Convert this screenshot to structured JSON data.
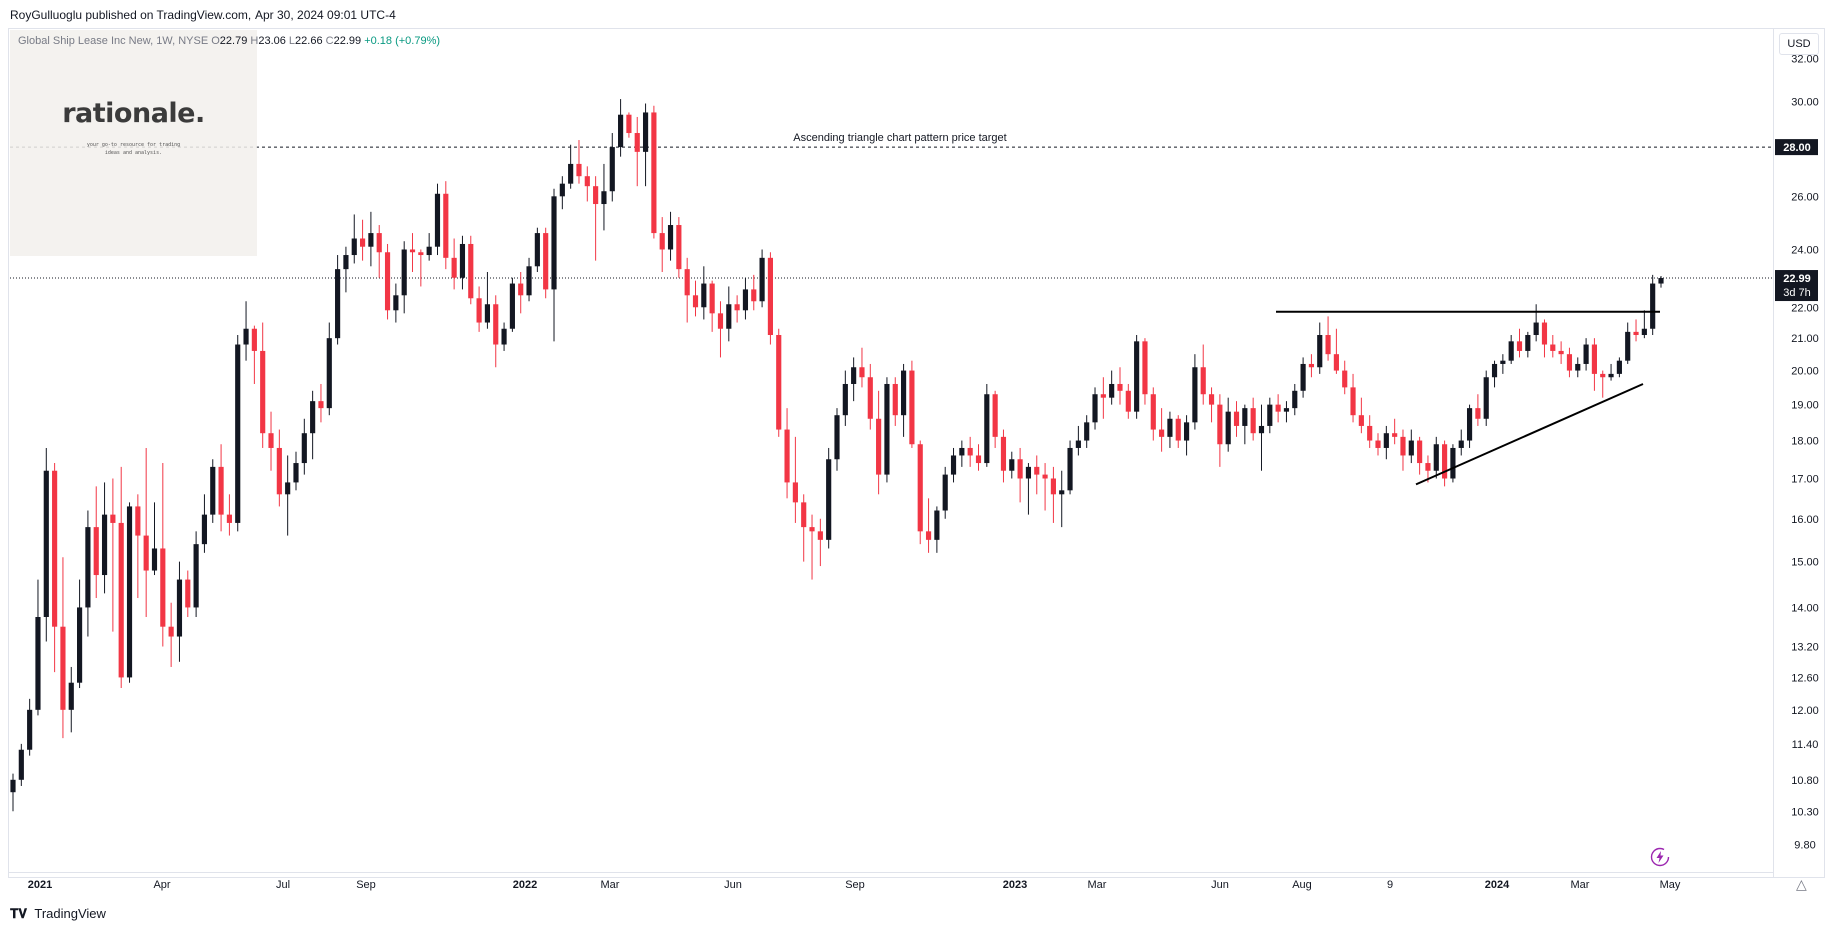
{
  "header": {
    "publisher": "RoyGulluoglu published on TradingView.com,",
    "date": "Apr 30, 2024 09:01 UTC-4"
  },
  "legend": {
    "title": "Global Ship Lease Inc New, 1W, NYSE",
    "open_label": "O",
    "open": "22.79",
    "high_label": "H",
    "high": "23.06",
    "low_label": "L",
    "low": "22.66",
    "close_label": "C",
    "close": "22.99",
    "change": "+0.18 (+0.79%)"
  },
  "watermark": {
    "word": "rationale.",
    "tagline_1": "your go-to resource for trading",
    "tagline_2": "ideas and analysis."
  },
  "currency": "USD",
  "colors": {
    "up": "#131722",
    "down": "#f23645",
    "accent": "#2962ff",
    "grid": "#e0e3eb",
    "axis_text": "#131722"
  },
  "chart_data": {
    "type": "candlestick",
    "scale": "log",
    "ylim": [
      9.4,
      33.5
    ],
    "y_ticks": [
      "32.00",
      "30.00",
      "26.00",
      "24.00",
      "22.00",
      "21.00",
      "20.00",
      "19.00",
      "18.00",
      "17.00",
      "16.00",
      "15.00",
      "14.00",
      "13.20",
      "12.60",
      "12.00",
      "11.40",
      "10.80",
      "10.30",
      "9.80"
    ],
    "x_ticks": [
      "2021",
      "Apr",
      "Jul",
      "Sep",
      "2022",
      "Mar",
      "Jun",
      "Sep",
      "2023",
      "Mar",
      "Jun",
      "Aug",
      "9",
      "2024",
      "Mar",
      "May"
    ],
    "target_line": {
      "value": 28.0,
      "label": "28.00",
      "annotation": "Ascending triangle chart pattern price target"
    },
    "last_price": {
      "value": 22.99,
      "label": "22.99",
      "countdown": "3d 7h"
    },
    "candles": [
      [
        10.6,
        10.9,
        10.3,
        10.8
      ],
      [
        10.8,
        11.4,
        10.7,
        11.3
      ],
      [
        11.3,
        12.2,
        11.2,
        12.0
      ],
      [
        12.0,
        14.6,
        11.9,
        13.8
      ],
      [
        13.8,
        17.8,
        13.3,
        17.2
      ],
      [
        17.2,
        17.4,
        12.7,
        13.6
      ],
      [
        13.6,
        15.1,
        11.5,
        12.0
      ],
      [
        12.0,
        12.8,
        11.6,
        12.5
      ],
      [
        12.5,
        14.6,
        12.4,
        14.0
      ],
      [
        14.0,
        16.2,
        13.4,
        15.8
      ],
      [
        15.8,
        16.8,
        14.2,
        14.7
      ],
      [
        14.7,
        16.9,
        14.3,
        16.1
      ],
      [
        16.1,
        17.0,
        13.5,
        15.9
      ],
      [
        15.9,
        17.3,
        12.4,
        12.6
      ],
      [
        12.6,
        16.4,
        12.5,
        16.3
      ],
      [
        16.3,
        16.6,
        14.2,
        15.6
      ],
      [
        15.6,
        17.8,
        13.8,
        14.8
      ],
      [
        14.8,
        16.4,
        14.7,
        15.3
      ],
      [
        15.3,
        17.4,
        13.2,
        13.6
      ],
      [
        13.6,
        14.1,
        12.8,
        13.4
      ],
      [
        13.4,
        15.0,
        12.9,
        14.6
      ],
      [
        14.6,
        14.8,
        13.8,
        14.0
      ],
      [
        14.0,
        15.7,
        13.8,
        15.4
      ],
      [
        15.4,
        16.6,
        15.2,
        16.1
      ],
      [
        16.1,
        17.5,
        15.9,
        17.3
      ],
      [
        17.3,
        17.9,
        15.7,
        16.1
      ],
      [
        16.1,
        16.6,
        15.6,
        15.9
      ],
      [
        15.9,
        21.1,
        15.7,
        20.8
      ],
      [
        20.8,
        22.2,
        20.3,
        21.3
      ],
      [
        21.3,
        21.4,
        19.6,
        20.6
      ],
      [
        20.6,
        21.5,
        17.8,
        18.2
      ],
      [
        18.2,
        18.8,
        17.2,
        17.8
      ],
      [
        17.8,
        18.3,
        16.3,
        16.6
      ],
      [
        16.6,
        17.6,
        15.6,
        16.9
      ],
      [
        16.9,
        17.7,
        16.7,
        17.4
      ],
      [
        17.4,
        18.6,
        17.1,
        18.2
      ],
      [
        18.2,
        19.4,
        17.5,
        19.1
      ],
      [
        19.1,
        19.6,
        18.5,
        18.9
      ],
      [
        18.9,
        21.5,
        18.7,
        21.0
      ],
      [
        21.0,
        23.8,
        20.8,
        23.3
      ],
      [
        23.3,
        24.1,
        22.5,
        23.8
      ],
      [
        23.8,
        25.3,
        23.5,
        24.4
      ],
      [
        24.4,
        25.1,
        23.6,
        24.1
      ],
      [
        24.1,
        25.4,
        23.4,
        24.6
      ],
      [
        24.6,
        24.9,
        23.0,
        23.9
      ],
      [
        23.9,
        24.2,
        21.6,
        21.9
      ],
      [
        21.9,
        22.8,
        21.5,
        22.4
      ],
      [
        22.4,
        24.3,
        21.8,
        24.0
      ],
      [
        24.0,
        24.6,
        23.2,
        23.9
      ],
      [
        23.9,
        24.0,
        22.7,
        23.8
      ],
      [
        23.8,
        24.6,
        23.6,
        24.1
      ],
      [
        24.1,
        26.5,
        23.8,
        26.1
      ],
      [
        26.1,
        26.6,
        23.3,
        23.7
      ],
      [
        23.7,
        24.4,
        22.6,
        23.0
      ],
      [
        23.0,
        24.5,
        22.6,
        24.2
      ],
      [
        24.2,
        24.5,
        22.1,
        22.3
      ],
      [
        22.3,
        22.7,
        21.2,
        21.5
      ],
      [
        21.5,
        23.2,
        21.3,
        22.1
      ],
      [
        22.1,
        22.4,
        20.1,
        20.8
      ],
      [
        20.8,
        21.5,
        20.6,
        21.3
      ],
      [
        21.3,
        23.0,
        21.2,
        22.8
      ],
      [
        22.8,
        23.2,
        21.8,
        22.4
      ],
      [
        22.4,
        23.7,
        22.2,
        23.4
      ],
      [
        23.4,
        24.8,
        23.2,
        24.6
      ],
      [
        24.6,
        24.8,
        22.3,
        22.6
      ],
      [
        22.6,
        26.3,
        20.9,
        26.0
      ],
      [
        26.0,
        26.8,
        25.5,
        26.5
      ],
      [
        26.5,
        28.1,
        26.3,
        27.3
      ],
      [
        27.3,
        28.3,
        26.5,
        26.8
      ],
      [
        26.8,
        27.2,
        25.8,
        26.4
      ],
      [
        26.4,
        26.8,
        23.6,
        25.7
      ],
      [
        25.7,
        27.3,
        24.7,
        26.2
      ],
      [
        26.2,
        28.6,
        25.8,
        28.0
      ],
      [
        28.0,
        30.1,
        27.6,
        29.4
      ],
      [
        29.4,
        29.5,
        28.4,
        28.6
      ],
      [
        28.6,
        29.3,
        26.4,
        27.8
      ],
      [
        27.8,
        29.9,
        26.4,
        29.5
      ],
      [
        29.5,
        29.8,
        24.4,
        24.6
      ],
      [
        24.6,
        25.2,
        23.2,
        24.0
      ],
      [
        24.0,
        25.4,
        23.6,
        24.9
      ],
      [
        24.9,
        25.2,
        23.0,
        23.3
      ],
      [
        23.3,
        23.7,
        21.5,
        22.4
      ],
      [
        22.4,
        22.9,
        21.7,
        22.0
      ],
      [
        22.0,
        23.4,
        21.6,
        22.8
      ],
      [
        22.8,
        22.9,
        21.2,
        21.8
      ],
      [
        21.8,
        22.2,
        20.4,
        21.3
      ],
      [
        21.3,
        22.7,
        20.9,
        22.1
      ],
      [
        22.1,
        22.4,
        21.5,
        21.9
      ],
      [
        21.9,
        23.0,
        21.6,
        22.6
      ],
      [
        22.6,
        23.1,
        21.9,
        22.2
      ],
      [
        22.2,
        24.0,
        22.0,
        23.7
      ],
      [
        23.7,
        23.9,
        20.8,
        21.1
      ],
      [
        21.1,
        21.3,
        18.1,
        18.3
      ],
      [
        18.3,
        18.9,
        16.5,
        16.9
      ],
      [
        16.9,
        18.1,
        15.9,
        16.4
      ],
      [
        16.4,
        16.6,
        15.0,
        15.8
      ],
      [
        15.8,
        16.1,
        14.6,
        15.7
      ],
      [
        15.7,
        16.0,
        14.9,
        15.5
      ],
      [
        15.5,
        17.8,
        15.3,
        17.5
      ],
      [
        17.5,
        18.9,
        17.2,
        18.7
      ],
      [
        18.7,
        20.0,
        18.4,
        19.6
      ],
      [
        19.6,
        20.4,
        19.1,
        20.1
      ],
      [
        20.1,
        20.7,
        19.5,
        19.8
      ],
      [
        19.8,
        20.2,
        18.3,
        18.6
      ],
      [
        18.6,
        19.4,
        16.6,
        17.1
      ],
      [
        17.1,
        19.8,
        16.9,
        19.6
      ],
      [
        19.6,
        19.8,
        18.4,
        18.7
      ],
      [
        18.7,
        20.2,
        18.1,
        20.0
      ],
      [
        20.0,
        20.3,
        17.8,
        17.9
      ],
      [
        17.9,
        18.0,
        15.4,
        15.7
      ],
      [
        15.7,
        16.5,
        15.2,
        15.5
      ],
      [
        15.5,
        16.3,
        15.2,
        16.2
      ],
      [
        16.2,
        17.3,
        16.0,
        17.1
      ],
      [
        17.1,
        17.8,
        16.9,
        17.6
      ],
      [
        17.6,
        18.0,
        17.3,
        17.8
      ],
      [
        17.8,
        18.1,
        17.3,
        17.6
      ],
      [
        17.6,
        17.9,
        17.2,
        17.4
      ],
      [
        17.4,
        19.6,
        17.3,
        19.3
      ],
      [
        19.3,
        19.4,
        17.8,
        18.1
      ],
      [
        18.1,
        18.3,
        16.9,
        17.2
      ],
      [
        17.2,
        17.7,
        17.0,
        17.5
      ],
      [
        17.5,
        17.8,
        16.4,
        17.0
      ],
      [
        17.0,
        17.4,
        16.1,
        17.3
      ],
      [
        17.3,
        17.6,
        16.6,
        17.1
      ],
      [
        17.1,
        17.4,
        16.2,
        17.0
      ],
      [
        17.0,
        17.3,
        15.9,
        16.6
      ],
      [
        16.6,
        17.2,
        15.8,
        16.7
      ],
      [
        16.7,
        18.0,
        16.6,
        17.8
      ],
      [
        17.8,
        18.4,
        17.6,
        18.0
      ],
      [
        18.0,
        18.7,
        17.8,
        18.5
      ],
      [
        18.5,
        19.5,
        18.3,
        19.3
      ],
      [
        19.3,
        19.8,
        18.6,
        19.2
      ],
      [
        19.2,
        20.0,
        19.0,
        19.6
      ],
      [
        19.6,
        20.1,
        19.0,
        19.4
      ],
      [
        19.4,
        19.6,
        18.6,
        18.8
      ],
      [
        18.8,
        21.1,
        18.6,
        20.9
      ],
      [
        20.9,
        21.0,
        19.0,
        19.3
      ],
      [
        19.3,
        19.5,
        18.0,
        18.3
      ],
      [
        18.3,
        18.9,
        17.7,
        18.1
      ],
      [
        18.1,
        18.8,
        17.8,
        18.6
      ],
      [
        18.6,
        18.7,
        17.8,
        18.0
      ],
      [
        18.0,
        18.7,
        17.6,
        18.5
      ],
      [
        18.5,
        20.5,
        18.3,
        20.1
      ],
      [
        20.1,
        20.8,
        19.0,
        19.3
      ],
      [
        19.3,
        19.5,
        18.5,
        19.0
      ],
      [
        19.0,
        19.3,
        17.3,
        17.9
      ],
      [
        17.9,
        19.2,
        17.7,
        18.8
      ],
      [
        18.8,
        19.1,
        18.1,
        18.4
      ],
      [
        18.4,
        19.0,
        17.9,
        18.9
      ],
      [
        18.9,
        19.2,
        18.0,
        18.2
      ],
      [
        18.2,
        19.0,
        17.2,
        18.4
      ],
      [
        18.4,
        19.2,
        18.2,
        19.0
      ],
      [
        19.0,
        19.3,
        18.5,
        18.8
      ],
      [
        18.8,
        19.1,
        18.5,
        18.9
      ],
      [
        18.9,
        19.6,
        18.7,
        19.4
      ],
      [
        19.4,
        20.4,
        19.2,
        20.2
      ],
      [
        20.2,
        20.5,
        19.8,
        20.1
      ],
      [
        20.1,
        21.5,
        19.9,
        21.1
      ],
      [
        21.1,
        21.7,
        20.3,
        20.5
      ],
      [
        20.5,
        21.3,
        19.9,
        20.0
      ],
      [
        20.0,
        20.3,
        19.3,
        19.5
      ],
      [
        19.5,
        19.9,
        18.5,
        18.7
      ],
      [
        18.7,
        19.2,
        18.2,
        18.4
      ],
      [
        18.4,
        18.7,
        17.8,
        18.0
      ],
      [
        18.0,
        18.2,
        17.6,
        17.8
      ],
      [
        17.8,
        18.4,
        17.5,
        18.2
      ],
      [
        18.2,
        18.6,
        17.9,
        18.1
      ],
      [
        18.1,
        18.3,
        17.2,
        17.6
      ],
      [
        17.6,
        18.3,
        17.4,
        18.0
      ],
      [
        18.0,
        18.1,
        17.1,
        17.4
      ],
      [
        17.4,
        17.6,
        16.9,
        17.2
      ],
      [
        17.2,
        18.1,
        17.0,
        17.9
      ],
      [
        17.9,
        18.0,
        16.8,
        17.0
      ],
      [
        17.0,
        17.9,
        16.9,
        17.8
      ],
      [
        17.8,
        18.3,
        17.6,
        18.0
      ],
      [
        18.0,
        19.0,
        17.8,
        18.9
      ],
      [
        18.9,
        19.3,
        18.4,
        18.6
      ],
      [
        18.6,
        20.0,
        18.4,
        19.8
      ],
      [
        19.8,
        20.3,
        19.5,
        20.2
      ],
      [
        20.2,
        20.5,
        19.9,
        20.3
      ],
      [
        20.3,
        21.1,
        20.2,
        20.9
      ],
      [
        20.9,
        21.3,
        20.4,
        20.6
      ],
      [
        20.6,
        21.2,
        20.4,
        21.1
      ],
      [
        21.1,
        22.1,
        20.9,
        21.5
      ],
      [
        21.5,
        21.6,
        20.4,
        20.8
      ],
      [
        20.8,
        21.1,
        20.4,
        20.6
      ],
      [
        20.6,
        20.9,
        20.2,
        20.5
      ],
      [
        20.5,
        20.7,
        19.8,
        20.0
      ],
      [
        20.0,
        20.4,
        19.8,
        20.2
      ],
      [
        20.2,
        21.0,
        20.0,
        20.8
      ],
      [
        20.8,
        21.0,
        19.4,
        19.9
      ],
      [
        19.9,
        20.0,
        19.2,
        19.8
      ],
      [
        19.8,
        20.2,
        19.7,
        19.9
      ],
      [
        19.9,
        20.4,
        19.8,
        20.3
      ],
      [
        20.3,
        21.5,
        20.2,
        21.2
      ],
      [
        21.2,
        21.6,
        20.9,
        21.1
      ],
      [
        21.1,
        21.9,
        21.0,
        21.3
      ],
      [
        21.3,
        23.1,
        21.1,
        22.8
      ],
      [
        22.8,
        23.06,
        22.66,
        22.99
      ]
    ]
  }
}
